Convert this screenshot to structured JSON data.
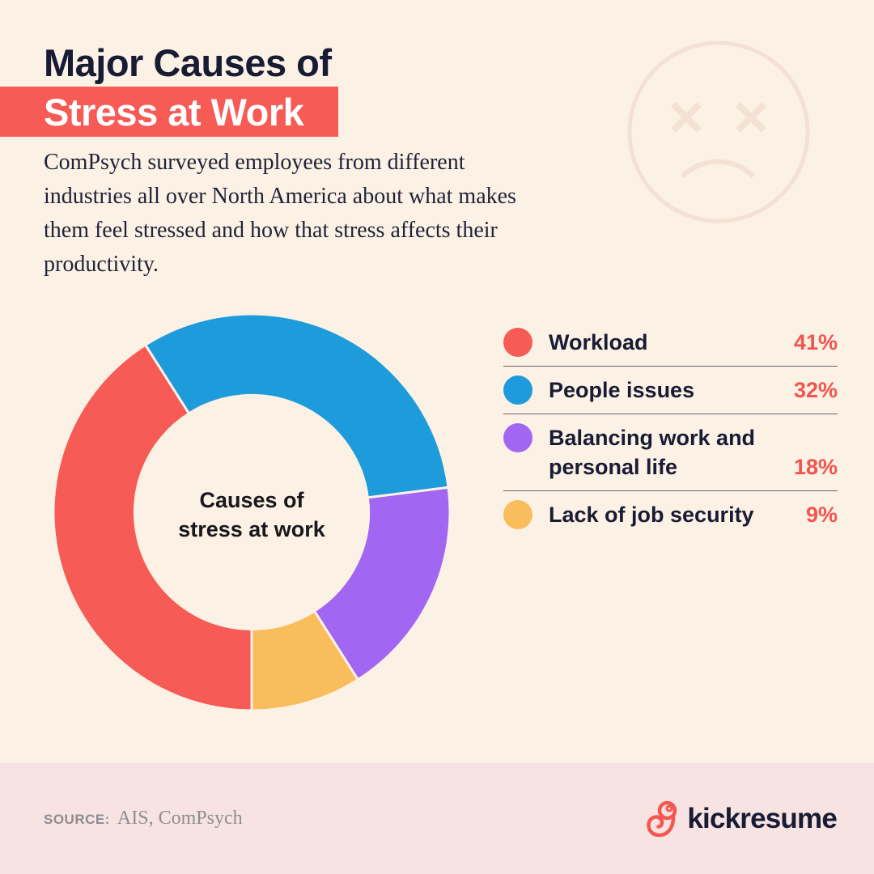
{
  "colors": {
    "background": "#FCF1E5",
    "navy_text": "#181B34",
    "accent_red": "#F65B56",
    "percent_red": "#F2544E",
    "footer_band": "#F7E3E1",
    "face_outline": "#F3E1D4",
    "brand_icon_red": "#F4574F"
  },
  "header": {
    "title_line1": "Major Causes of",
    "title_line2": "Stress at Work",
    "description_lines": [
      "ComPsych surveyed employees from different",
      "industries all over North America about what makes",
      "them feel stressed and how that stress affects their",
      "productivity."
    ]
  },
  "chart_data": {
    "type": "pie",
    "subtype": "donut",
    "center_label_lines": [
      "Causes of",
      "stress at work"
    ],
    "start_angle_deg": 180,
    "direction": "clockwise",
    "inner_radius_ratio": 0.59,
    "segments": [
      {
        "label": "Workload",
        "value": 41,
        "color": "#F65B56"
      },
      {
        "label": "People issues",
        "value": 32,
        "color": "#1D9BDB"
      },
      {
        "label": "Balancing work and personal life",
        "value": 18,
        "color": "#A166F2"
      },
      {
        "label": "Lack of job security",
        "value": 9,
        "color": "#FABD5B"
      }
    ]
  },
  "legend": {
    "rows": [
      {
        "lines": [
          "Workload"
        ],
        "percent": "41%"
      },
      {
        "lines": [
          "People issues"
        ],
        "percent": "32%"
      },
      {
        "lines": [
          "Balancing work and",
          "personal life"
        ],
        "percent": "18%"
      },
      {
        "lines": [
          "Lack of job security"
        ],
        "percent": "9%"
      }
    ]
  },
  "footer": {
    "source_label": "SOURCE:",
    "source_value": "AIS, ComPsych",
    "brand": "kickresume"
  }
}
